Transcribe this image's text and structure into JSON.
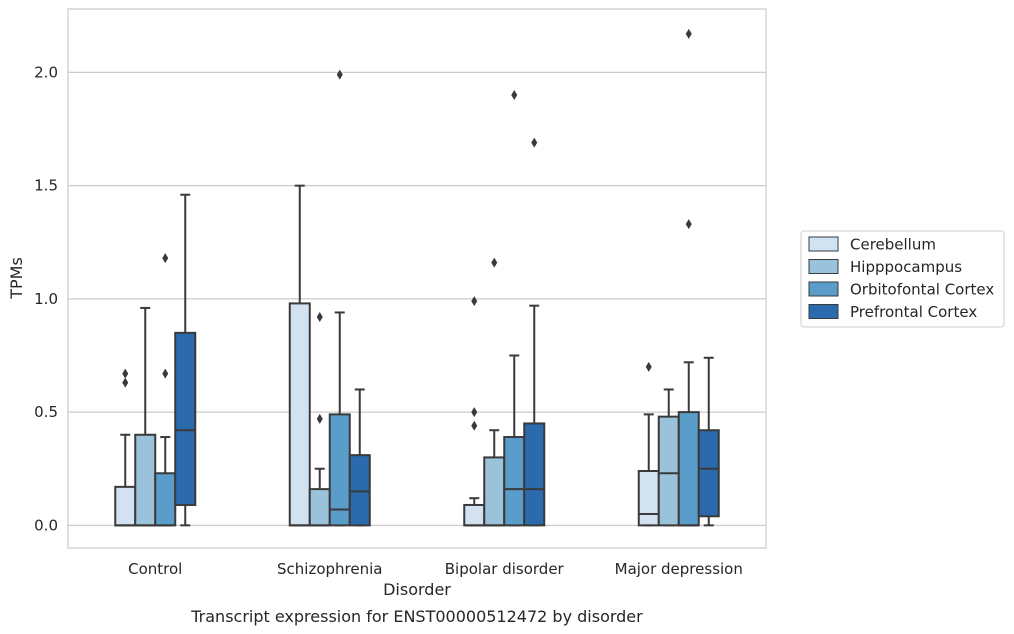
{
  "chart_data": {
    "type": "box",
    "caption": "Transcript expression for ENST00000512472 by disorder",
    "xlabel": "Disorder",
    "ylabel": "TPMs",
    "ylim": [
      -0.1,
      2.28
    ],
    "yticks": [
      "0.0",
      "0.5",
      "1.0",
      "1.5",
      "2.0"
    ],
    "categories": [
      "Control",
      "Schizophrenia",
      "Bipolar disorder",
      "Major depression"
    ],
    "grid": "horizontal",
    "legend_position": "right",
    "series": [
      {
        "name": "Cerebellum",
        "color": "#d3e2f1",
        "boxes": [
          {
            "whislo": 0.0,
            "q1": 0.0,
            "med": 0.0,
            "q3": 0.17,
            "whishi": 0.4,
            "fliers": [
              0.67,
              0.63
            ]
          },
          {
            "whislo": 0.0,
            "q1": 0.0,
            "med": 0.0,
            "q3": 0.98,
            "whishi": 1.5,
            "fliers": []
          },
          {
            "whislo": 0.0,
            "q1": 0.0,
            "med": 0.0,
            "q3": 0.09,
            "whishi": 0.12,
            "fliers": [
              0.99,
              0.5,
              0.44
            ]
          },
          {
            "whislo": 0.0,
            "q1": 0.0,
            "med": 0.05,
            "q3": 0.24,
            "whishi": 0.49,
            "fliers": [
              0.7
            ]
          }
        ]
      },
      {
        "name": "Hipppocampus",
        "color": "#9ac3db",
        "boxes": [
          {
            "whislo": 0.0,
            "q1": 0.0,
            "med": 0.0,
            "q3": 0.4,
            "whishi": 0.96,
            "fliers": []
          },
          {
            "whislo": 0.0,
            "q1": 0.0,
            "med": 0.0,
            "q3": 0.16,
            "whishi": 0.25,
            "fliers": [
              0.92,
              0.47
            ]
          },
          {
            "whislo": 0.0,
            "q1": 0.0,
            "med": 0.0,
            "q3": 0.3,
            "whishi": 0.42,
            "fliers": [
              1.16
            ]
          },
          {
            "whislo": 0.0,
            "q1": 0.0,
            "med": 0.23,
            "q3": 0.48,
            "whishi": 0.6,
            "fliers": []
          }
        ]
      },
      {
        "name": "Orbitofontal Cortex",
        "color": "#5b9dca",
        "boxes": [
          {
            "whislo": 0.0,
            "q1": 0.0,
            "med": 0.0,
            "q3": 0.23,
            "whishi": 0.39,
            "fliers": [
              1.18,
              0.67
            ]
          },
          {
            "whislo": 0.0,
            "q1": 0.0,
            "med": 0.07,
            "q3": 0.49,
            "whishi": 0.94,
            "fliers": [
              1.99
            ]
          },
          {
            "whislo": 0.0,
            "q1": 0.0,
            "med": 0.16,
            "q3": 0.39,
            "whishi": 0.75,
            "fliers": [
              1.9
            ]
          },
          {
            "whislo": 0.0,
            "q1": 0.0,
            "med": 0.0,
            "q3": 0.5,
            "whishi": 0.72,
            "fliers": [
              2.17,
              1.33
            ]
          }
        ]
      },
      {
        "name": "Prefrontal Cortex",
        "color": "#2b6aac",
        "boxes": [
          {
            "whislo": 0.0,
            "q1": 0.09,
            "med": 0.42,
            "q3": 0.85,
            "whishi": 1.46,
            "fliers": []
          },
          {
            "whislo": 0.0,
            "q1": 0.0,
            "med": 0.15,
            "q3": 0.31,
            "whishi": 0.6,
            "fliers": []
          },
          {
            "whislo": 0.0,
            "q1": 0.0,
            "med": 0.16,
            "q3": 0.45,
            "whishi": 0.97,
            "fliers": [
              1.69
            ]
          },
          {
            "whislo": 0.0,
            "q1": 0.04,
            "med": 0.25,
            "q3": 0.42,
            "whishi": 0.74,
            "fliers": []
          }
        ]
      }
    ]
  }
}
